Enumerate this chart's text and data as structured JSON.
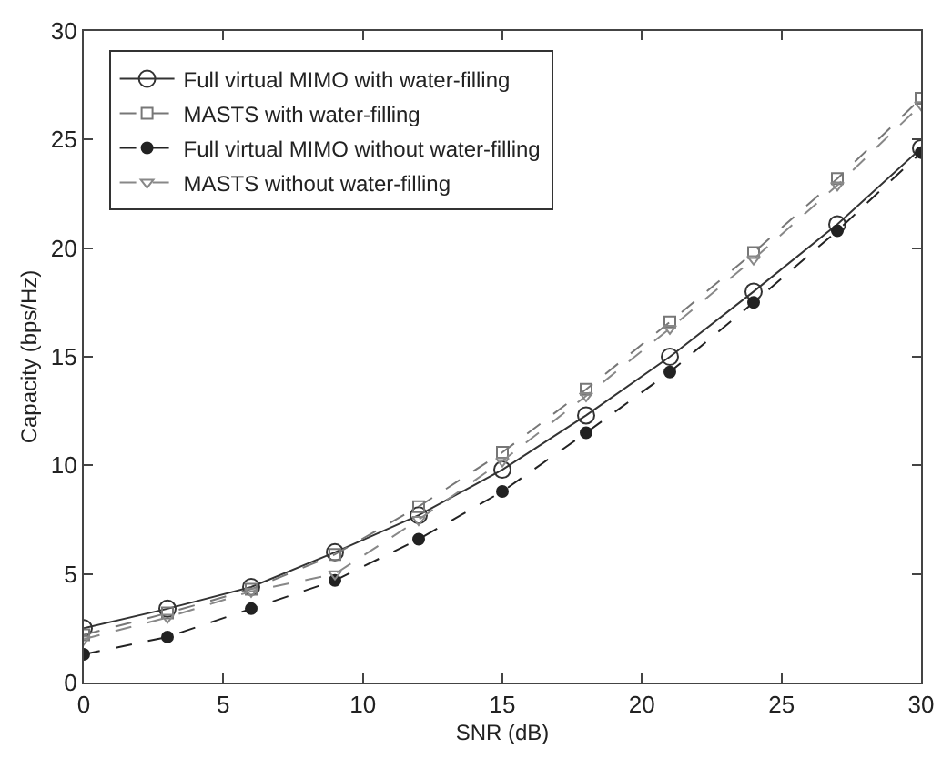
{
  "chart_data": {
    "type": "line",
    "xlabel": "SNR (dB)",
    "ylabel": "Capacity (bps/Hz)",
    "x": [
      0,
      3,
      6,
      9,
      12,
      15,
      18,
      21,
      24,
      27,
      30
    ],
    "xlim": [
      0,
      30
    ],
    "xticks": [
      0,
      5,
      10,
      15,
      20,
      25,
      30
    ],
    "ylim": [
      0,
      30
    ],
    "yticks": [
      0,
      5,
      10,
      15,
      20,
      25,
      30
    ],
    "grid": false,
    "legend": "top left",
    "series": [
      {
        "name": "Full virtual MIMO with water-filling",
        "color": "#333333",
        "marker": "circle",
        "line_style": "solid",
        "values": [
          2.5,
          3.4,
          4.4,
          6.0,
          7.7,
          9.8,
          12.3,
          15.0,
          18.0,
          21.1,
          24.6
        ]
      },
      {
        "name": "MASTS with water-filling",
        "color": "#777777",
        "marker": "square",
        "line_style": "dashed",
        "values": [
          2.2,
          3.2,
          4.3,
          5.9,
          8.1,
          10.6,
          13.5,
          16.6,
          19.8,
          23.2,
          26.9
        ]
      },
      {
        "name": "Full virtual MIMO without water-filling",
        "color": "#222222",
        "marker": "circle",
        "line_style": "dashed",
        "values": [
          1.3,
          2.1,
          3.4,
          4.7,
          6.6,
          8.8,
          11.5,
          14.3,
          17.5,
          20.8,
          24.4
        ]
      },
      {
        "name": "MASTS without water-filling",
        "color": "#888888",
        "marker": "triangle",
        "line_style": "dashed",
        "values": [
          2.0,
          3.0,
          4.2,
          5.0,
          7.5,
          10.2,
          13.2,
          16.3,
          19.5,
          22.9,
          26.6
        ]
      }
    ]
  }
}
